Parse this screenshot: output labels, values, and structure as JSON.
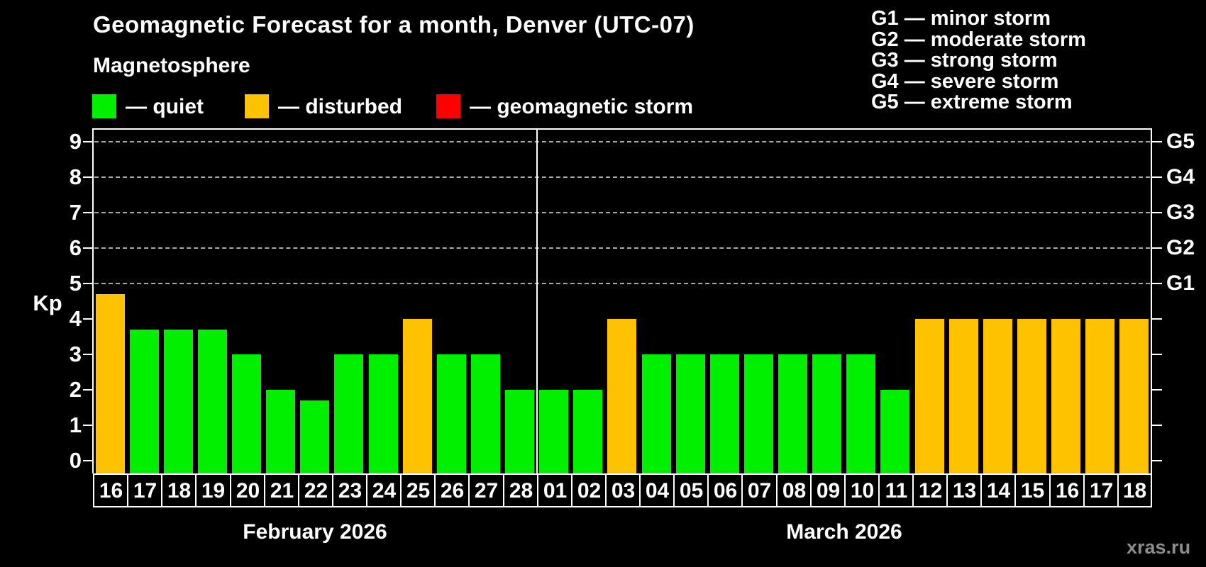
{
  "header": {
    "title": "Geomagnetic Forecast for a month, Denver (UTC-07)",
    "subtitle": "Magnetosphere"
  },
  "legend": {
    "items": [
      {
        "key": "quiet",
        "label": "— quiet",
        "color": "#00f000"
      },
      {
        "key": "disturbed",
        "label": "— disturbed",
        "color": "#ffc200"
      },
      {
        "key": "storm",
        "label": "— geomagnetic storm",
        "color": "#ff0000"
      }
    ]
  },
  "storm_scale_legend": {
    "items": [
      "G1 — minor storm",
      "G2 — moderate storm",
      "G3 — strong storm",
      "G4 — severe storm",
      "G5 — extreme storm"
    ]
  },
  "watermark": "xras.ru",
  "chart_data": {
    "type": "bar",
    "title": "Geomagnetic Forecast for a month, Denver (UTC-07)",
    "ylabel": "Kp",
    "ylim": [
      0,
      9
    ],
    "yticks": [
      0,
      1,
      2,
      3,
      4,
      5,
      6,
      7,
      8,
      9
    ],
    "grid_levels": [
      5,
      6,
      7,
      8,
      9
    ],
    "grid_on": true,
    "legend_position": "top",
    "right_axis_labels": [
      {
        "kp": 5,
        "label": "G1"
      },
      {
        "kp": 6,
        "label": "G2"
      },
      {
        "kp": 7,
        "label": "G3"
      },
      {
        "kp": 8,
        "label": "G4"
      },
      {
        "kp": 9,
        "label": "G5"
      }
    ],
    "colors": {
      "quiet": "#00f000",
      "disturbed": "#ffc200",
      "storm": "#ff0000"
    },
    "sections": [
      {
        "label": "February 2026",
        "days": [
          {
            "day": "16",
            "kp": 4.7,
            "status": "disturbed"
          },
          {
            "day": "17",
            "kp": 3.7,
            "status": "quiet"
          },
          {
            "day": "18",
            "kp": 3.7,
            "status": "quiet"
          },
          {
            "day": "19",
            "kp": 3.7,
            "status": "quiet"
          },
          {
            "day": "20",
            "kp": 3.0,
            "status": "quiet"
          },
          {
            "day": "21",
            "kp": 2.0,
            "status": "quiet"
          },
          {
            "day": "22",
            "kp": 1.7,
            "status": "quiet"
          },
          {
            "day": "23",
            "kp": 3.0,
            "status": "quiet"
          },
          {
            "day": "24",
            "kp": 3.0,
            "status": "quiet"
          },
          {
            "day": "25",
            "kp": 4.0,
            "status": "disturbed"
          },
          {
            "day": "26",
            "kp": 3.0,
            "status": "quiet"
          },
          {
            "day": "27",
            "kp": 3.0,
            "status": "quiet"
          },
          {
            "day": "28",
            "kp": 2.0,
            "status": "quiet"
          }
        ]
      },
      {
        "label": "March 2026",
        "days": [
          {
            "day": "01",
            "kp": 2.0,
            "status": "quiet"
          },
          {
            "day": "02",
            "kp": 2.0,
            "status": "quiet"
          },
          {
            "day": "03",
            "kp": 4.0,
            "status": "disturbed"
          },
          {
            "day": "04",
            "kp": 3.0,
            "status": "quiet"
          },
          {
            "day": "05",
            "kp": 3.0,
            "status": "quiet"
          },
          {
            "day": "06",
            "kp": 3.0,
            "status": "quiet"
          },
          {
            "day": "07",
            "kp": 3.0,
            "status": "quiet"
          },
          {
            "day": "08",
            "kp": 3.0,
            "status": "quiet"
          },
          {
            "day": "09",
            "kp": 3.0,
            "status": "quiet"
          },
          {
            "day": "10",
            "kp": 3.0,
            "status": "quiet"
          },
          {
            "day": "11",
            "kp": 2.0,
            "status": "quiet"
          },
          {
            "day": "12",
            "kp": 4.0,
            "status": "disturbed"
          },
          {
            "day": "13",
            "kp": 4.0,
            "status": "disturbed"
          },
          {
            "day": "14",
            "kp": 4.0,
            "status": "disturbed"
          },
          {
            "day": "15",
            "kp": 4.0,
            "status": "disturbed"
          },
          {
            "day": "16",
            "kp": 4.0,
            "status": "disturbed"
          },
          {
            "day": "17",
            "kp": 4.0,
            "status": "disturbed"
          },
          {
            "day": "18",
            "kp": 4.0,
            "status": "disturbed"
          }
        ]
      }
    ]
  }
}
